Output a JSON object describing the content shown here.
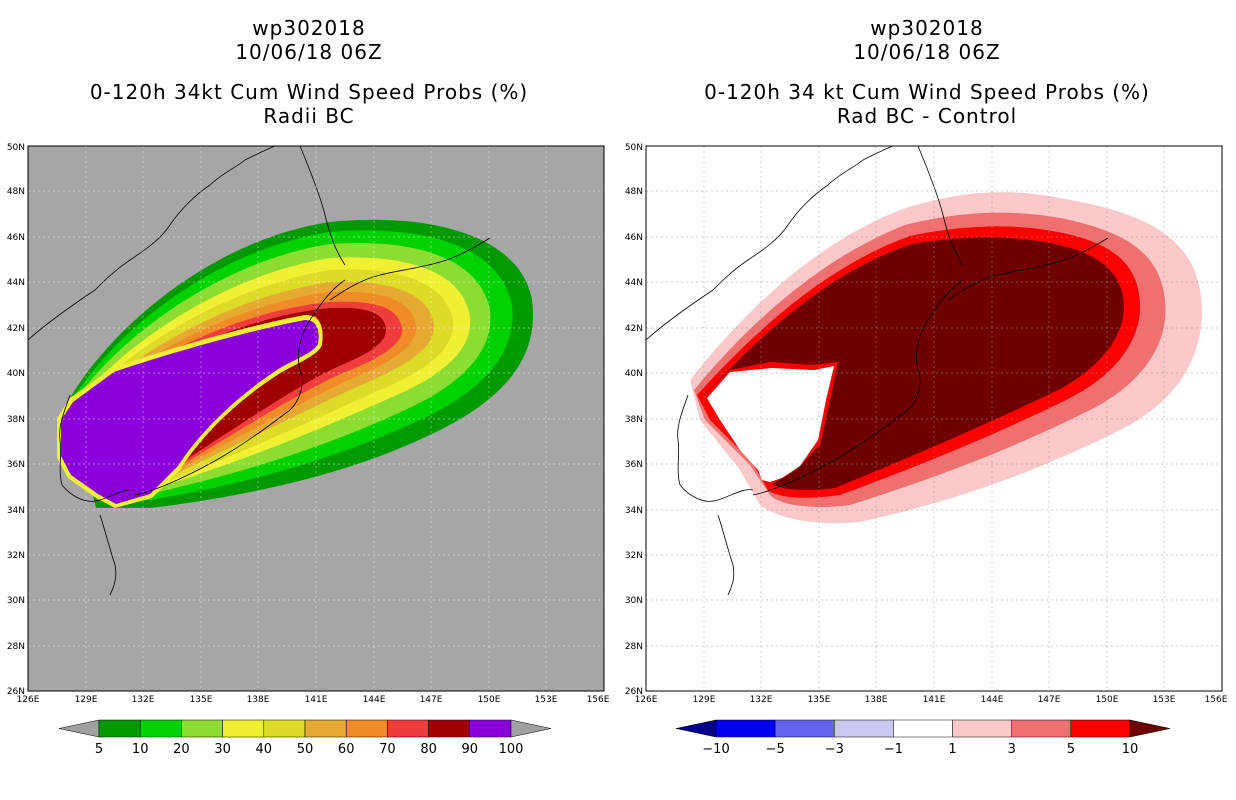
{
  "chart_data": [
    {
      "type": "contour-map",
      "title": [
        "wp302018",
        "10/06/18 06Z"
      ],
      "subtitle": [
        "0-120h 34kt Cum Wind Speed Probs (%)",
        "Radii BC"
      ],
      "x": [
        "126E",
        "129E",
        "132E",
        "135E",
        "138E",
        "141E",
        "144E",
        "147E",
        "150E",
        "153E",
        "156E"
      ],
      "y": [
        "26N",
        "28N",
        "30N",
        "32N",
        "34N",
        "36N",
        "38N",
        "40N",
        "42N",
        "44N",
        "46N",
        "48N",
        "50N"
      ],
      "xlim": [
        126,
        156
      ],
      "ylim": [
        26,
        50
      ],
      "colorbar": {
        "levels": [
          "5",
          "10",
          "20",
          "30",
          "40",
          "50",
          "60",
          "70",
          "80",
          "90",
          "100"
        ],
        "colors": [
          "#009a00",
          "#00d200",
          "#8cdc32",
          "#f0f032",
          "#dcdc28",
          "#e6aa32",
          "#f08c28",
          "#f03c3c",
          "#a00000",
          "#8c00dc"
        ],
        "under": "#a0a0a0",
        "over": "#a0a0a0"
      },
      "background": "#a6a6a6"
    },
    {
      "type": "contour-map",
      "title": [
        "wp302018",
        "10/06/18 06Z"
      ],
      "subtitle": [
        "0-120h 34 kt Cum Wind Speed Probs (%)",
        "Rad BC - Control"
      ],
      "x": [
        "126E",
        "129E",
        "132E",
        "135E",
        "138E",
        "141E",
        "144E",
        "147E",
        "150E",
        "153E",
        "156E"
      ],
      "y": [
        "26N",
        "28N",
        "30N",
        "32N",
        "34N",
        "36N",
        "38N",
        "40N",
        "42N",
        "44N",
        "46N",
        "48N",
        "50N"
      ],
      "xlim": [
        126,
        156
      ],
      "ylim": [
        26,
        50
      ],
      "colorbar": {
        "levels": [
          "−10",
          "−5",
          "−3",
          "−1",
          "1",
          "3",
          "5",
          "10"
        ],
        "colors": [
          "#0000f0",
          "#6464f0",
          "#c8c8f0",
          "#ffffff",
          "#fac8c8",
          "#f07070",
          "#ff0000"
        ],
        "under": "#00008c",
        "over": "#6e0000"
      },
      "background": "#ffffff"
    }
  ]
}
